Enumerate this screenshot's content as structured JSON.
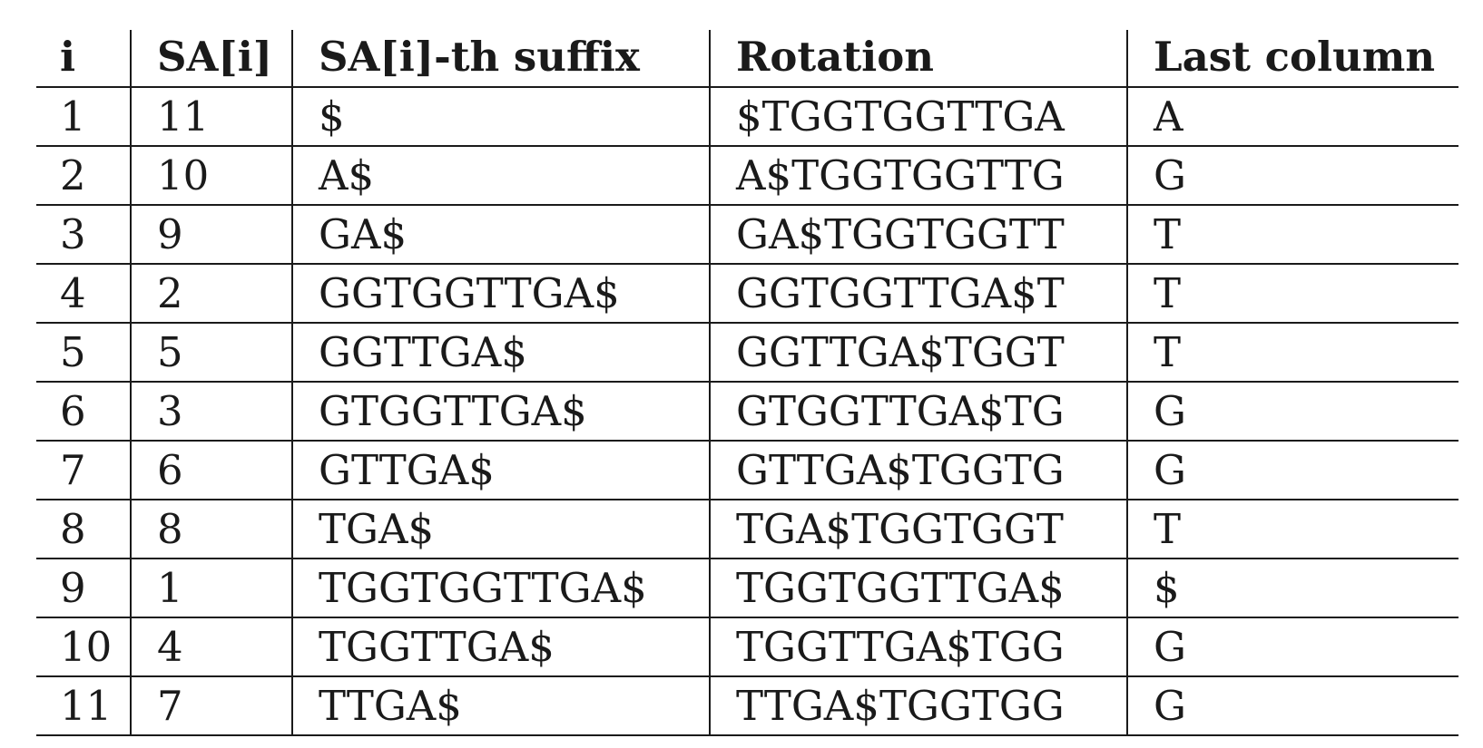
{
  "table": {
    "headers": [
      "i",
      "SA[i]",
      "SA[i]-th suffix",
      "Rotation",
      "Last column"
    ],
    "rows": [
      [
        "1",
        "11",
        "$",
        "$TGGTGGTTGA",
        "A"
      ],
      [
        "2",
        "10",
        "A$",
        "A$TGGTGGTTG",
        "G"
      ],
      [
        "3",
        "9",
        "GA$",
        "GA$TGGTGGTT",
        "T"
      ],
      [
        "4",
        "2",
        "GGTGGTTGA$",
        "GGTGGTTGA$T",
        "T"
      ],
      [
        "5",
        "5",
        "GGTTGA$",
        "GGTTGA$TGGT",
        "T"
      ],
      [
        "6",
        "3",
        "GTGGTTGA$",
        "GTGGTTGA$TG",
        "G"
      ],
      [
        "7",
        "6",
        "GTTGA$",
        "GTTGA$TGGTG",
        "G"
      ],
      [
        "8",
        "8",
        "TGA$",
        "TGA$TGGTGGT",
        "T"
      ],
      [
        "9",
        "1",
        "TGGTGGTTGA$",
        "TGGTGGTTGA$",
        "$"
      ],
      [
        "10",
        "4",
        "TGGTTGA$",
        "TGGTTGA$TGG",
        "G"
      ],
      [
        "11",
        "7",
        "TTGA$",
        "TTGA$TGGTGG",
        "G"
      ]
    ]
  }
}
